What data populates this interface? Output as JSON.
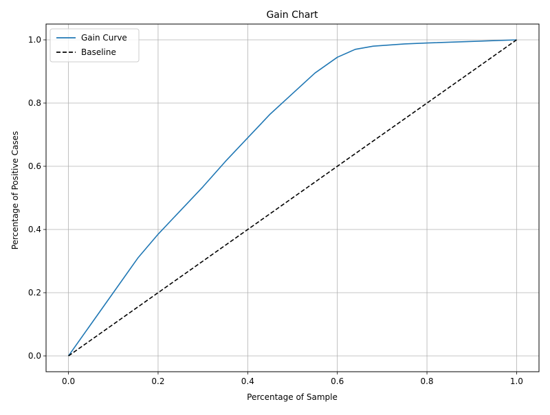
{
  "chart_data": {
    "type": "line",
    "title": "Gain Chart",
    "xlabel": "Percentage of Sample",
    "ylabel": "Percentage of Positive Cases",
    "xlim": [
      -0.05,
      1.05
    ],
    "ylim": [
      -0.05,
      1.05
    ],
    "xticks": [
      0.0,
      0.2,
      0.4,
      0.6,
      0.8,
      1.0
    ],
    "yticks": [
      0.0,
      0.2,
      0.4,
      0.6,
      0.8,
      1.0
    ],
    "xtick_labels": [
      "0.0",
      "0.2",
      "0.4",
      "0.6",
      "0.8",
      "1.0"
    ],
    "ytick_labels": [
      "0.0",
      "0.2",
      "0.4",
      "0.6",
      "0.8",
      "1.0"
    ],
    "grid": true,
    "legend_position": "top-left",
    "series": [
      {
        "name": "Gain Curve",
        "color": "#1f77b4",
        "style": "solid",
        "x": [
          0.0,
          0.05,
          0.1,
          0.155,
          0.2,
          0.25,
          0.3,
          0.35,
          0.4,
          0.45,
          0.5,
          0.55,
          0.6,
          0.64,
          0.68,
          0.75,
          0.8,
          0.9,
          1.0
        ],
        "y": [
          0.0,
          0.1,
          0.2,
          0.31,
          0.385,
          0.46,
          0.535,
          0.615,
          0.69,
          0.765,
          0.83,
          0.895,
          0.945,
          0.97,
          0.98,
          0.987,
          0.99,
          0.995,
          1.0
        ]
      },
      {
        "name": "Baseline",
        "color": "#000000",
        "style": "dashed",
        "x": [
          0.0,
          1.0
        ],
        "y": [
          0.0,
          1.0
        ]
      }
    ]
  }
}
